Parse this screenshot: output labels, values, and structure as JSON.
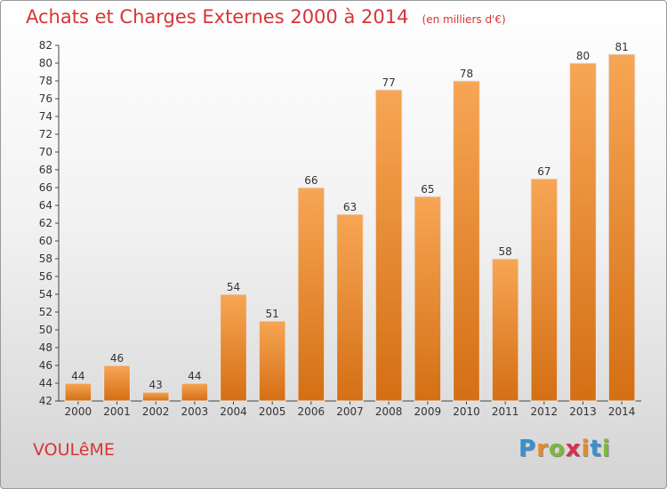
{
  "header": {
    "title": "Achats et Charges Externes 2000 à 2014",
    "subtitle": "(en milliers d'€)"
  },
  "footer": {
    "commune": "VOULêME",
    "logo_letters": [
      {
        "char": "P",
        "color": "#3a8fd0"
      },
      {
        "char": "r",
        "color": "#e8892a"
      },
      {
        "char": "o",
        "color": "#7cb83a"
      },
      {
        "char": "x",
        "color": "#d8304a"
      },
      {
        "char": "i",
        "color": "#e8892a"
      },
      {
        "char": "t",
        "color": "#3a8fd0"
      },
      {
        "char": "i",
        "color": "#7cb83a"
      }
    ]
  },
  "chart_data": {
    "type": "bar",
    "categories": [
      "2000",
      "2001",
      "2002",
      "2003",
      "2004",
      "2005",
      "2006",
      "2007",
      "2008",
      "2009",
      "2010",
      "2011",
      "2012",
      "2013",
      "2014"
    ],
    "values": [
      44,
      46,
      43,
      44,
      54,
      51,
      66,
      63,
      77,
      65,
      78,
      58,
      67,
      80,
      81
    ],
    "title": "Achats et Charges Externes 2000 à 2014",
    "ylim": [
      42,
      82
    ],
    "ytick_step": 2,
    "grid": false,
    "bar_color": "#f0922e",
    "bar_color_dark": "#d46f14"
  }
}
